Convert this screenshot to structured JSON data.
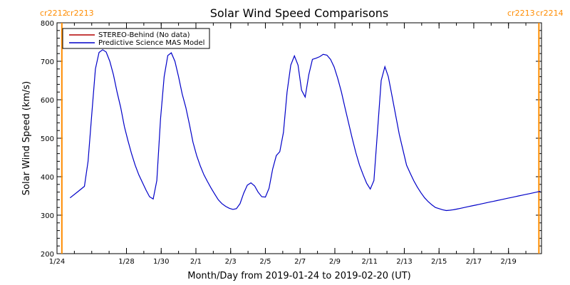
{
  "chart_data": {
    "type": "line",
    "title": "Solar Wind Speed Comparisons",
    "xlabel": "Month/Day from 2019-01-24 to 2019-02-20 (UT)",
    "ylabel": "Solar Wind Speed (km/s)",
    "ylim": [
      200,
      800
    ],
    "yticks": [
      200,
      300,
      400,
      500,
      600,
      700,
      800
    ],
    "xlim_days": [
      0,
      27.9
    ],
    "x_unit": "days since 2019-01-24 00:00 UT",
    "xticks": [
      {
        "x": 0,
        "label": "1/24"
      },
      {
        "x": 4,
        "label": "1/28"
      },
      {
        "x": 6,
        "label": "1/30"
      },
      {
        "x": 8,
        "label": "2/1"
      },
      {
        "x": 10,
        "label": "2/3"
      },
      {
        "x": 12,
        "label": "2/5"
      },
      {
        "x": 14,
        "label": "2/7"
      },
      {
        "x": 16,
        "label": "2/9"
      },
      {
        "x": 18,
        "label": "2/11"
      },
      {
        "x": 20,
        "label": "2/13"
      },
      {
        "x": 22,
        "label": "2/15"
      },
      {
        "x": 24,
        "label": "2/17"
      },
      {
        "x": 26,
        "label": "2/19"
      }
    ],
    "grid": false,
    "legend_position": "top-left",
    "series": [
      {
        "name": "STEREO-Behind (No data)",
        "color": "#b40000",
        "x": [],
        "y": []
      },
      {
        "name": "Predictive Science MAS Model",
        "color": "#0000c8",
        "x": [
          0.75,
          1.17,
          1.58,
          1.79,
          2.0,
          2.21,
          2.42,
          2.63,
          2.83,
          3.04,
          3.25,
          3.46,
          3.67,
          3.88,
          4.08,
          4.29,
          4.5,
          4.71,
          4.92,
          5.13,
          5.33,
          5.54,
          5.75,
          5.96,
          6.17,
          6.38,
          6.58,
          6.79,
          7.0,
          7.21,
          7.42,
          7.63,
          7.83,
          8.04,
          8.25,
          8.46,
          8.67,
          8.88,
          9.08,
          9.29,
          9.5,
          9.71,
          9.92,
          10.13,
          10.33,
          10.54,
          10.75,
          10.96,
          11.17,
          11.38,
          11.58,
          11.79,
          12.0,
          12.21,
          12.42,
          12.63,
          12.83,
          13.04,
          13.25,
          13.46,
          13.67,
          13.88,
          14.08,
          14.29,
          14.5,
          14.71,
          14.92,
          15.13,
          15.33,
          15.54,
          15.75,
          15.96,
          16.17,
          16.38,
          16.58,
          16.79,
          17.0,
          17.21,
          17.42,
          17.63,
          17.83,
          18.04,
          18.25,
          18.46,
          18.67,
          18.88,
          19.08,
          19.29,
          19.5,
          19.71,
          19.92,
          20.13,
          20.33,
          20.54,
          20.75,
          20.96,
          21.17,
          21.38,
          21.58,
          21.79,
          22.0,
          22.21,
          22.42,
          22.63,
          22.83,
          23.04,
          23.25,
          23.46,
          23.67,
          23.88,
          24.08,
          24.29,
          24.5,
          24.71,
          24.92,
          25.13,
          25.33,
          25.54,
          25.75,
          25.96,
          26.17,
          26.38,
          26.58,
          26.79,
          27.0,
          27.21,
          27.42,
          27.63,
          27.83
        ],
        "y": [
          345,
          360,
          375,
          440,
          560,
          680,
          723,
          730,
          724,
          700,
          665,
          620,
          580,
          530,
          495,
          460,
          430,
          405,
          385,
          365,
          348,
          342,
          390,
          550,
          660,
          715,
          722,
          700,
          660,
          615,
          580,
          535,
          490,
          455,
          428,
          405,
          387,
          370,
          355,
          340,
          330,
          323,
          318,
          315,
          317,
          330,
          357,
          378,
          384,
          376,
          360,
          348,
          347,
          370,
          420,
          455,
          465,
          515,
          620,
          690,
          714,
          690,
          625,
          607,
          665,
          705,
          708,
          712,
          718,
          716,
          705,
          685,
          655,
          620,
          580,
          540,
          500,
          462,
          430,
          405,
          383,
          368,
          390,
          520,
          650,
          686,
          660,
          610,
          560,
          510,
          470,
          430,
          410,
          390,
          373,
          358,
          345,
          335,
          327,
          320,
          317,
          314,
          312,
          313,
          314,
          316,
          318,
          320,
          322,
          324,
          326,
          328,
          330,
          332,
          334,
          336,
          338,
          340,
          342,
          344,
          346,
          348,
          350,
          352,
          354,
          356,
          358,
          360,
          362
        ]
      }
    ],
    "vertical_markers": [
      {
        "x": 0.28,
        "color": "#ff8c00",
        "labels": [
          "cr2212",
          "cr2213"
        ]
      },
      {
        "x": 27.75,
        "color": "#ff8c00",
        "labels": [
          "cr2213",
          "cr2214"
        ]
      }
    ]
  }
}
